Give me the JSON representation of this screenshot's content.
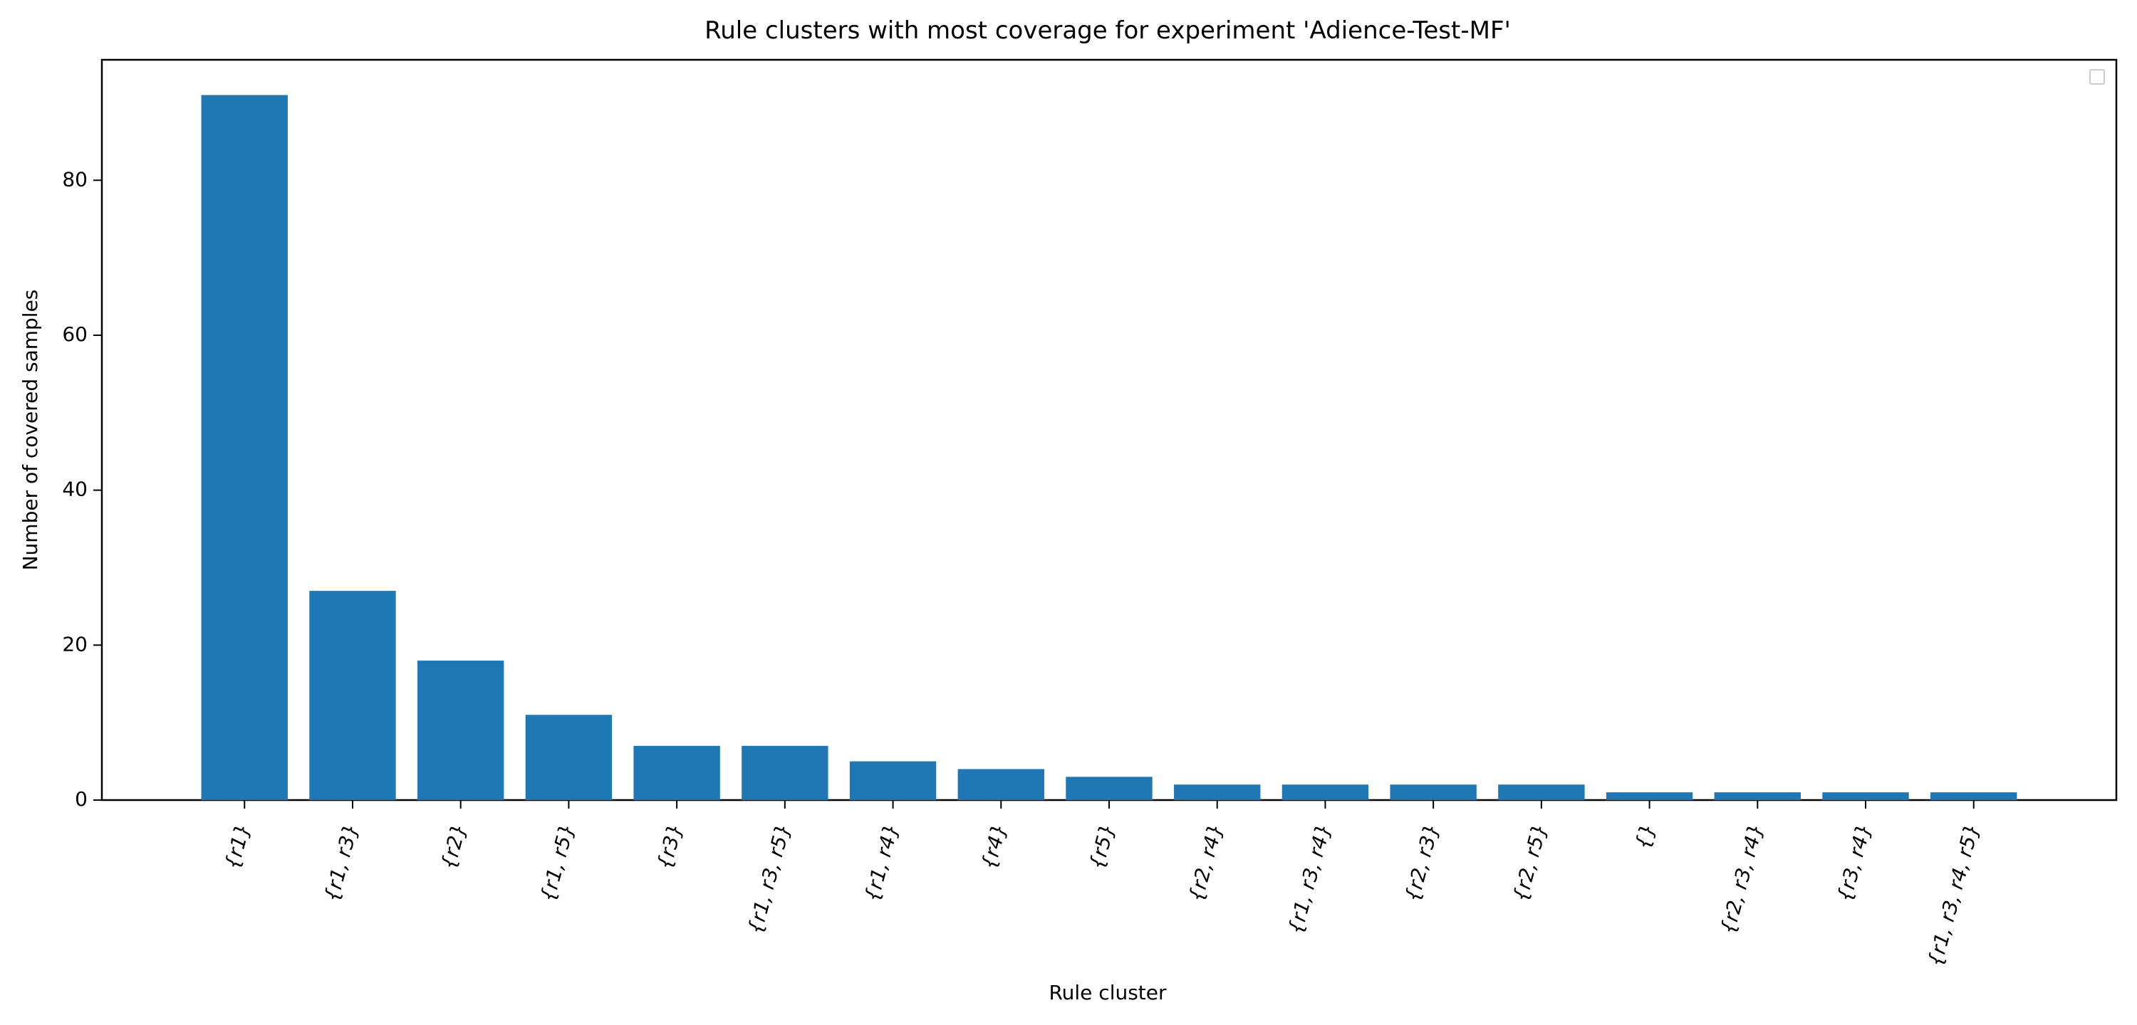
{
  "chart_data": {
    "type": "bar",
    "title": "Rule clusters with most coverage for experiment 'Adience-Test-MF'",
    "xlabel": "Rule cluster",
    "ylabel": "Number of covered samples",
    "categories": [
      "{r1}",
      "{r1, r3}",
      "{r2}",
      "{r1, r5}",
      "{r3}",
      "{r1, r3, r5}",
      "{r1, r4}",
      "{r4}",
      "{r5}",
      "{r2, r4}",
      "{r1, r3, r4}",
      "{r2, r3}",
      "{r2, r5}",
      "{}",
      "{r2, r3, r4}",
      "{r3, r4}",
      "{r1, r3, r4, r5}"
    ],
    "values": [
      91,
      27,
      18,
      11,
      7,
      7,
      5,
      4,
      3,
      2,
      2,
      2,
      2,
      1,
      1,
      1,
      1
    ],
    "ylim": [
      0,
      95.55
    ],
    "yticks": [
      0,
      20,
      40,
      60,
      80
    ],
    "grid": false,
    "legend": "top-right (empty)",
    "bar_color": "#1f77b4"
  }
}
